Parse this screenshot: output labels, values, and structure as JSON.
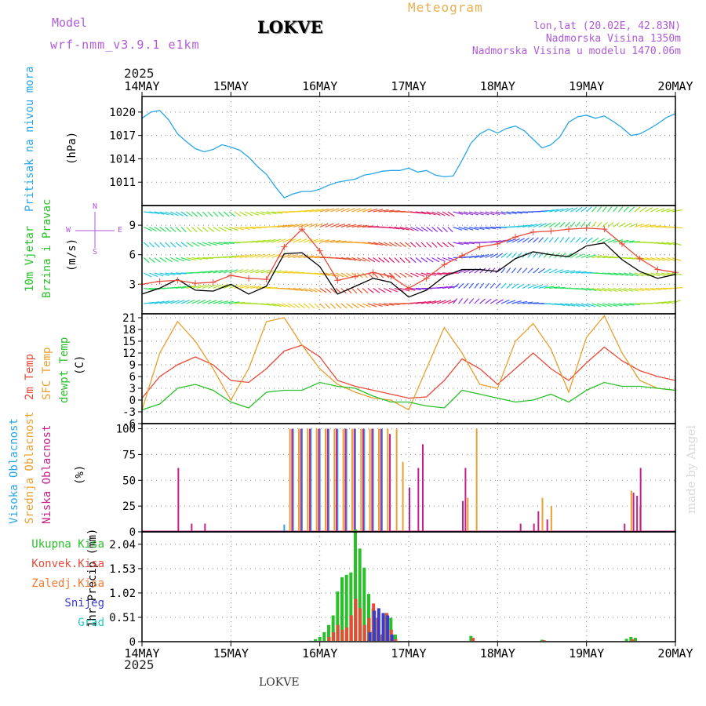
{
  "header": {
    "model_label": "Model",
    "model_name": "wrf-nmm_v3.9.1 e1km",
    "title": "LOKVE",
    "meteogram": "Meteogram",
    "lonlat": "lon,lat (20.02E, 42.83N)",
    "altitude": "Nadmorska Visina 1350m",
    "model_altitude": "Nadmorska Visina u modelu 1470.06m",
    "year_top": "2025",
    "year_bottom": "2025",
    "footer": "LOKVE",
    "watermark": "made by Angel"
  },
  "x_axis": {
    "labels": [
      "14MAY",
      "15MAY",
      "16MAY",
      "17MAY",
      "18MAY",
      "19MAY",
      "20MAY"
    ],
    "day_count": 6
  },
  "colors": {
    "pressure": "#2aa6e6",
    "temp2m": "#e84a3a",
    "sfc": "#e8a030",
    "dewpt": "#2ac02a",
    "high": "#2aa6e6",
    "mid": "#e8a030",
    "low": "#c8208a",
    "total": "#2ac02a",
    "convective": "#e84a3a",
    "freezing": "#f07a30",
    "snow": "#3a3ad0",
    "hail": "#28c8c0",
    "wind_speed": "#000000",
    "gust": "#e84a3a"
  },
  "panels": {
    "pressure": {
      "label": "Pritisak na nivou mora",
      "unit": "(hPa)",
      "ticks": [
        "1011",
        "1014",
        "1017",
        "1020"
      ]
    },
    "wind": {
      "label1": "10m Vjetar",
      "label2": "Brzina i Pravac",
      "unit": "(m/s)",
      "ticks": [
        "3",
        "6",
        "9"
      ],
      "compass_w": "W",
      "compass_e": "E",
      "compass_n": "N",
      "compass_s": "S"
    },
    "temp": {
      "label1": "2m Temp",
      "label2": "SFC Temp",
      "label3": "dewpt Temp",
      "unit": "(C)",
      "ticks": [
        "-6",
        "-3",
        "0",
        "3",
        "6",
        "9",
        "12",
        "15",
        "18",
        "21"
      ]
    },
    "cloud": {
      "label1": "Visoka Oblacnost",
      "label2": "Srednja Oblacnost",
      "label3": "Niska Oblacnost",
      "unit": "(%)",
      "ticks": [
        "0",
        "25",
        "50",
        "75",
        "100"
      ]
    },
    "precip": {
      "label": "1hr Precip (mm)",
      "ticks": [
        "0",
        "0.51",
        "1.02",
        "1.53",
        "2.04"
      ],
      "legend": [
        "Ukupna Kisa",
        "Konvek.Kisa",
        "Zaledj.Kisa",
        "Snijeg",
        "Grad"
      ]
    }
  },
  "chart_data": [
    {
      "type": "line",
      "title": "",
      "ylabel": "Pritisak na nivou mora (hPa)",
      "ylim": [
        1008,
        1022
      ],
      "x_days": [
        0,
        0.1,
        0.2,
        0.3,
        0.4,
        0.5,
        0.6,
        0.7,
        0.8,
        0.9,
        1.0,
        1.1,
        1.2,
        1.3,
        1.4,
        1.5,
        1.6,
        1.7,
        1.8,
        1.9,
        2.0,
        2.1,
        2.2,
        2.3,
        2.4,
        2.5,
        2.6,
        2.7,
        2.8,
        2.9,
        3.0,
        3.1,
        3.2,
        3.3,
        3.4,
        3.5,
        3.6,
        3.7,
        3.8,
        3.9,
        4.0,
        4.1,
        4.2,
        4.3,
        4.4,
        4.5,
        4.6,
        4.7,
        4.8,
        4.9,
        5.0,
        5.1,
        5.2,
        5.3,
        5.4,
        5.5,
        5.6,
        5.7,
        5.8,
        5.9,
        6.0
      ],
      "series": [
        {
          "name": "Pritisak na nivou mora",
          "values": [
            1019.2,
            1020,
            1020.2,
            1019,
            1017.2,
            1016.2,
            1015.3,
            1014.9,
            1015.2,
            1015.8,
            1015.5,
            1015.1,
            1014.2,
            1013.0,
            1012.0,
            1010.4,
            1009.0,
            1009.5,
            1009.8,
            1009.8,
            1010.1,
            1010.6,
            1011.0,
            1011.2,
            1011.4,
            1011.9,
            1012.1,
            1012.4,
            1012.5,
            1012.5,
            1012.8,
            1012.3,
            1012.5,
            1011.9,
            1011.7,
            1011.8,
            1013.8,
            1016.0,
            1017.2,
            1017.8,
            1017.3,
            1017.9,
            1018.2,
            1017.6,
            1016.5,
            1015.4,
            1015.8,
            1016.8,
            1018.7,
            1019.4,
            1019.6,
            1019.2,
            1019.5,
            1018.8,
            1018.0,
            1017.0,
            1017.2,
            1017.8,
            1018.5,
            1019.3,
            1019.8
          ]
        }
      ]
    },
    {
      "type": "line",
      "title": "",
      "ylabel": "10m Vjetar Brzina i Pravac (m/s)",
      "ylim": [
        0,
        11
      ],
      "x_days": [
        0,
        0.2,
        0.4,
        0.6,
        0.8,
        1.0,
        1.2,
        1.4,
        1.6,
        1.8,
        2.0,
        2.2,
        2.4,
        2.6,
        2.8,
        3.0,
        3.2,
        3.4,
        3.6,
        3.8,
        4.0,
        4.2,
        4.4,
        4.6,
        4.8,
        5.0,
        5.2,
        5.4,
        5.6,
        5.8,
        6.0
      ],
      "series": [
        {
          "name": "Brzina",
          "values": [
            2.0,
            2.6,
            3.5,
            2.4,
            2.3,
            3.0,
            2.0,
            2.8,
            6.1,
            6.2,
            4.8,
            2.0,
            2.8,
            3.6,
            3.2,
            1.7,
            2.4,
            3.8,
            4.5,
            4.5,
            4.3,
            5.6,
            6.3,
            6.0,
            5.8,
            6.9,
            7.2,
            5.5,
            4.3,
            3.6,
            4.0
          ]
        },
        {
          "name": "Udar",
          "values": [
            3.0,
            3.3,
            3.4,
            3.1,
            3.2,
            3.9,
            3.6,
            3.5,
            6.8,
            8.6,
            6.4,
            3.4,
            3.8,
            4.2,
            3.8,
            2.6,
            3.6,
            5.0,
            5.9,
            6.8,
            7.1,
            7.8,
            8.3,
            8.4,
            8.6,
            8.7,
            8.6,
            7.1,
            5.6,
            4.5,
            4.2
          ]
        }
      ]
    },
    {
      "type": "line",
      "title": "",
      "ylabel": "Temp (C)",
      "ylim": [
        -6,
        22
      ],
      "x_days": [
        0,
        0.2,
        0.4,
        0.6,
        0.8,
        1.0,
        1.2,
        1.4,
        1.6,
        1.8,
        2.0,
        2.2,
        2.4,
        2.6,
        2.8,
        3.0,
        3.2,
        3.4,
        3.6,
        3.8,
        4.0,
        4.2,
        4.4,
        4.6,
        4.8,
        5.0,
        5.2,
        5.4,
        5.6,
        5.8,
        6.0
      ],
      "series": [
        {
          "name": "2m Temp",
          "values": [
            0.5,
            6.0,
            9.0,
            11.0,
            9.0,
            5.0,
            4.5,
            8.0,
            12.5,
            14.0,
            11.0,
            5.0,
            3.5,
            2.5,
            1.5,
            0.5,
            0.8,
            5.0,
            10.5,
            8.0,
            4.0,
            8.0,
            12.0,
            8.0,
            5.0,
            9.5,
            13.5,
            10.0,
            7.5,
            6.0,
            5.0
          ]
        },
        {
          "name": "SFC Temp",
          "values": [
            -2.5,
            12.0,
            20.0,
            15.0,
            8.0,
            0.0,
            8.0,
            20.0,
            21.0,
            14.0,
            8.0,
            4.0,
            2.0,
            0.5,
            0.0,
            -2.5,
            8.0,
            18.5,
            12.0,
            4.0,
            3.0,
            15.0,
            19.5,
            13.0,
            2.0,
            16.0,
            21.5,
            12.0,
            5.0,
            3.0,
            2.5
          ]
        },
        {
          "name": "dewpt Temp",
          "values": [
            -2.5,
            -1.0,
            3.0,
            4.0,
            2.5,
            -0.5,
            -2.0,
            2.0,
            2.5,
            2.5,
            4.5,
            3.5,
            3.0,
            1.0,
            -0.5,
            -0.5,
            -1.5,
            -2.0,
            2.5,
            1.5,
            0.5,
            -0.5,
            0.0,
            1.5,
            -0.5,
            2.5,
            4.5,
            3.5,
            3.5,
            3.0,
            2.5
          ]
        }
      ]
    },
    {
      "type": "bar",
      "title": "",
      "ylabel": "Oblacnost (%)",
      "ylim": [
        0,
        105
      ],
      "series": [
        {
          "name": "Visoka Oblacnost",
          "x_days": [
            1.6,
            1.7,
            1.8,
            1.9,
            2.0,
            2.1,
            2.2,
            2.3,
            2.4,
            2.5,
            2.6,
            2.7
          ],
          "values": [
            7,
            100,
            100,
            100,
            100,
            100,
            100,
            100,
            100,
            100,
            100,
            100
          ]
        },
        {
          "name": "Srednja Oblacnost",
          "x_days": [
            1.66,
            1.76,
            1.86,
            1.96,
            2.06,
            2.16,
            2.26,
            2.36,
            2.46,
            2.56,
            2.66,
            2.76,
            2.86,
            2.93,
            3.66,
            3.76,
            4.5,
            4.6,
            5.5,
            5.6
          ],
          "values": [
            100,
            100,
            100,
            100,
            100,
            100,
            100,
            100,
            100,
            100,
            100,
            100,
            100,
            68,
            33,
            100,
            33,
            25,
            40,
            25
          ]
        },
        {
          "name": "Niska Oblacnost",
          "x_days": [
            0.4,
            0.55,
            0.7,
            1.68,
            1.78,
            1.88,
            1.98,
            2.08,
            2.18,
            2.28,
            2.38,
            2.48,
            2.58,
            2.68,
            2.78,
            3.0,
            3.1,
            3.15,
            3.6,
            3.63,
            4.25,
            4.4,
            4.45,
            4.55,
            5.42,
            5.52,
            5.56,
            5.6
          ],
          "values": [
            62,
            8,
            8,
            100,
            100,
            100,
            100,
            100,
            100,
            100,
            100,
            100,
            100,
            100,
            95,
            43,
            62,
            85,
            30,
            62,
            8,
            8,
            20,
            12,
            8,
            38,
            35,
            62
          ]
        }
      ]
    },
    {
      "type": "bar",
      "title": "",
      "ylabel": "1hr Precip (mm)",
      "ylim": [
        0,
        2.3
      ],
      "series": [
        {
          "name": "Ukupna Kisa",
          "x_days": [
            1.9,
            1.95,
            2.0,
            2.05,
            2.1,
            2.15,
            2.2,
            2.25,
            2.3,
            2.35,
            2.4,
            2.45,
            2.5,
            2.55,
            2.6,
            2.65,
            2.7,
            2.75,
            2.8,
            2.85,
            3.7,
            4.5,
            5.45,
            5.5,
            5.55
          ],
          "values": [
            0.02,
            0.05,
            0.1,
            0.2,
            0.35,
            0.55,
            1.05,
            1.35,
            1.4,
            1.45,
            2.35,
            1.95,
            1.55,
            1.0,
            0.7,
            0.5,
            0.15,
            0.6,
            0.5,
            0.15,
            0.12,
            0.04,
            0.06,
            0.1,
            0.08
          ]
        },
        {
          "name": "Konvek.Kisa",
          "x_days": [
            2.1,
            2.15,
            2.2,
            2.25,
            2.3,
            2.35,
            2.4,
            2.45,
            2.5,
            2.55,
            2.6,
            2.65,
            2.7,
            2.75,
            2.8,
            2.85,
            3.72,
            4.52,
            5.52
          ],
          "values": [
            0.1,
            0.2,
            0.35,
            0.25,
            0.3,
            0.55,
            0.9,
            0.7,
            0.35,
            0.5,
            0.8,
            0.5,
            0.15,
            0.6,
            0.25,
            0.05,
            0.08,
            0.03,
            0.05
          ]
        },
        {
          "name": "Zaledj.Kisa",
          "x_days": [],
          "values": []
        },
        {
          "name": "Snijeg",
          "x_days": [
            2.55,
            2.6,
            2.65,
            2.7,
            2.75,
            2.8
          ],
          "values": [
            0.2,
            0.65,
            0.7,
            0.6,
            0.55,
            0.15
          ]
        },
        {
          "name": "Grad",
          "x_days": [],
          "values": []
        }
      ]
    }
  ]
}
